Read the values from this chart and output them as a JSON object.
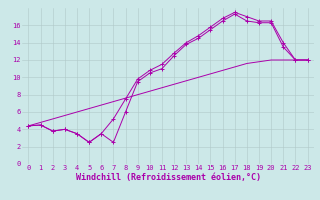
{
  "xlabel": "Windchill (Refroidissement éolien,°C)",
  "background_color": "#cce8e8",
  "grid_color": "#b0c8c8",
  "line_color": "#aa00aa",
  "x_values": [
    0,
    1,
    2,
    3,
    4,
    5,
    6,
    7,
    8,
    9,
    10,
    11,
    12,
    13,
    14,
    15,
    16,
    17,
    18,
    19,
    20,
    21,
    22,
    23
  ],
  "line1_y": [
    4.4,
    4.5,
    3.8,
    4.0,
    3.5,
    2.5,
    3.5,
    2.5,
    6.0,
    9.5,
    10.5,
    11.0,
    12.5,
    13.8,
    14.5,
    15.5,
    16.5,
    17.3,
    16.5,
    16.3,
    16.3,
    13.5,
    12.0,
    12.0
  ],
  "line2_y": [
    4.4,
    4.5,
    3.8,
    4.0,
    3.5,
    2.5,
    3.5,
    5.2,
    7.5,
    9.8,
    10.8,
    11.5,
    12.8,
    14.0,
    14.8,
    15.8,
    16.8,
    17.5,
    17.0,
    16.5,
    16.5,
    14.0,
    12.0,
    12.0
  ],
  "line3_y": [
    4.4,
    4.8,
    5.2,
    5.6,
    6.0,
    6.4,
    6.8,
    7.2,
    7.6,
    8.0,
    8.4,
    8.8,
    9.2,
    9.6,
    10.0,
    10.4,
    10.8,
    11.2,
    11.6,
    11.8,
    12.0,
    12.0,
    12.0,
    12.0
  ],
  "ylim": [
    0,
    18
  ],
  "xlim": [
    -0.5,
    23.5
  ],
  "yticks": [
    0,
    2,
    4,
    6,
    8,
    10,
    12,
    14,
    16
  ],
  "xticks": [
    0,
    1,
    2,
    3,
    4,
    5,
    6,
    7,
    8,
    9,
    10,
    11,
    12,
    13,
    14,
    15,
    16,
    17,
    18,
    19,
    20,
    21,
    22,
    23
  ],
  "tick_fontsize": 5.0,
  "xlabel_fontsize": 6.0,
  "figwidth": 3.2,
  "figheight": 2.0,
  "dpi": 100
}
